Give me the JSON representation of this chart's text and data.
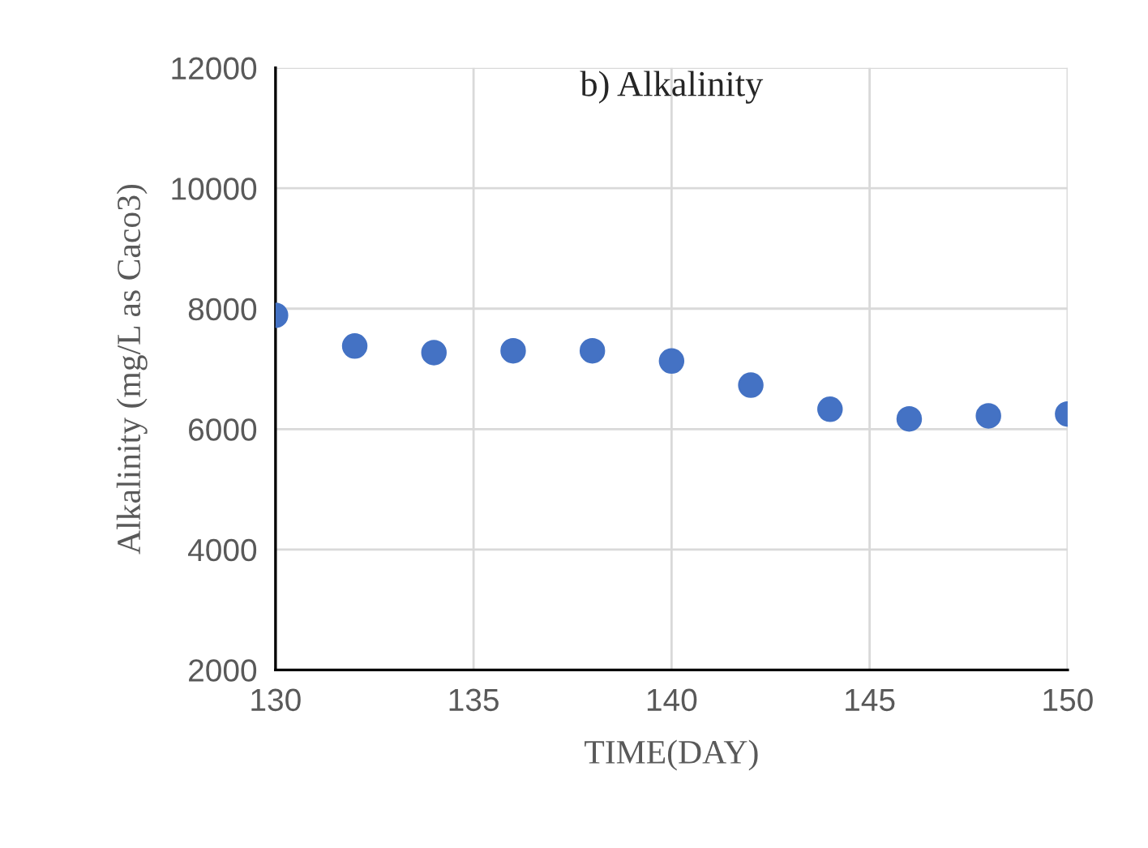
{
  "chart_data": {
    "type": "scatter",
    "title": "b) Alkalinity",
    "xlabel": "TIME(DAY)",
    "ylabel": "Alkalinity (mg/L as Caco3)",
    "x": [
      130,
      132,
      134,
      136,
      138,
      140,
      142,
      144,
      146,
      148,
      150
    ],
    "series": [
      {
        "color": "#4472c4",
        "values": [
          7890,
          7380,
          7270,
          7300,
          7300,
          7130,
          6730,
          6330,
          6170,
          6220,
          6250
        ]
      }
    ],
    "xlim": [
      130,
      150
    ],
    "xticks": [
      130,
      135,
      140,
      145,
      150
    ],
    "ylim": [
      2000,
      12000
    ],
    "yticks": [
      2000,
      4000,
      6000,
      8000,
      10000,
      12000
    ],
    "grid": true,
    "marker": "circle",
    "legend": false
  }
}
